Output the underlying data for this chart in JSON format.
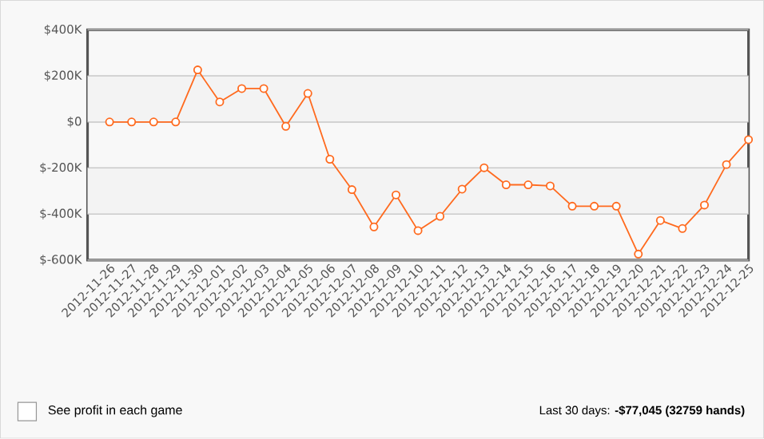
{
  "chart_data": {
    "type": "line",
    "categories": [
      "2012-11-26",
      "2012-11-27",
      "2012-11-28",
      "2012-11-29",
      "2012-11-30",
      "2012-12-01",
      "2012-12-02",
      "2012-12-03",
      "2012-12-04",
      "2012-12-05",
      "2012-12-06",
      "2012-12-07",
      "2012-12-08",
      "2012-12-09",
      "2012-12-10",
      "2012-12-11",
      "2012-12-12",
      "2012-12-13",
      "2012-12-14",
      "2012-12-15",
      "2012-12-16",
      "2012-12-17",
      "2012-12-18",
      "2012-12-19",
      "2012-12-20",
      "2012-12-21",
      "2012-12-22",
      "2012-12-23",
      "2012-12-24",
      "2012-12-25"
    ],
    "series": [
      {
        "color": "#ff6a1e",
        "values": [
          0,
          0,
          0,
          0,
          226000,
          87000,
          145000,
          145000,
          -19000,
          124000,
          -162000,
          -294000,
          -456000,
          -317000,
          -472000,
          -410000,
          -292000,
          -199000,
          -273000,
          -273000,
          -278000,
          -366000,
          -366000,
          -366000,
          -574000,
          -428000,
          -463000,
          -361000,
          -185000,
          -77000
        ]
      }
    ],
    "ylim": [
      -600000,
      400000
    ],
    "yticks": [
      {
        "value": -600000,
        "label": "$-600K"
      },
      {
        "value": -400000,
        "label": "$-400K"
      },
      {
        "value": -200000,
        "label": "$-200K"
      },
      {
        "value": 0,
        "label": "$0"
      },
      {
        "value": 200000,
        "label": "$200K"
      },
      {
        "value": 400000,
        "label": "$400K"
      }
    ],
    "grid": "y",
    "marker": "circle",
    "line_style": "solid",
    "bands": [
      {
        "axis": "y",
        "from": 0,
        "to": 200000,
        "color": "#f3f3f3"
      },
      {
        "axis": "y",
        "from": -400000,
        "to": -200000,
        "color": "#f3f3f3"
      }
    ],
    "annotations": [
      "See profit in each game",
      "Last 30 days: **-$77,045 (32759 hands)**"
    ]
  }
}
